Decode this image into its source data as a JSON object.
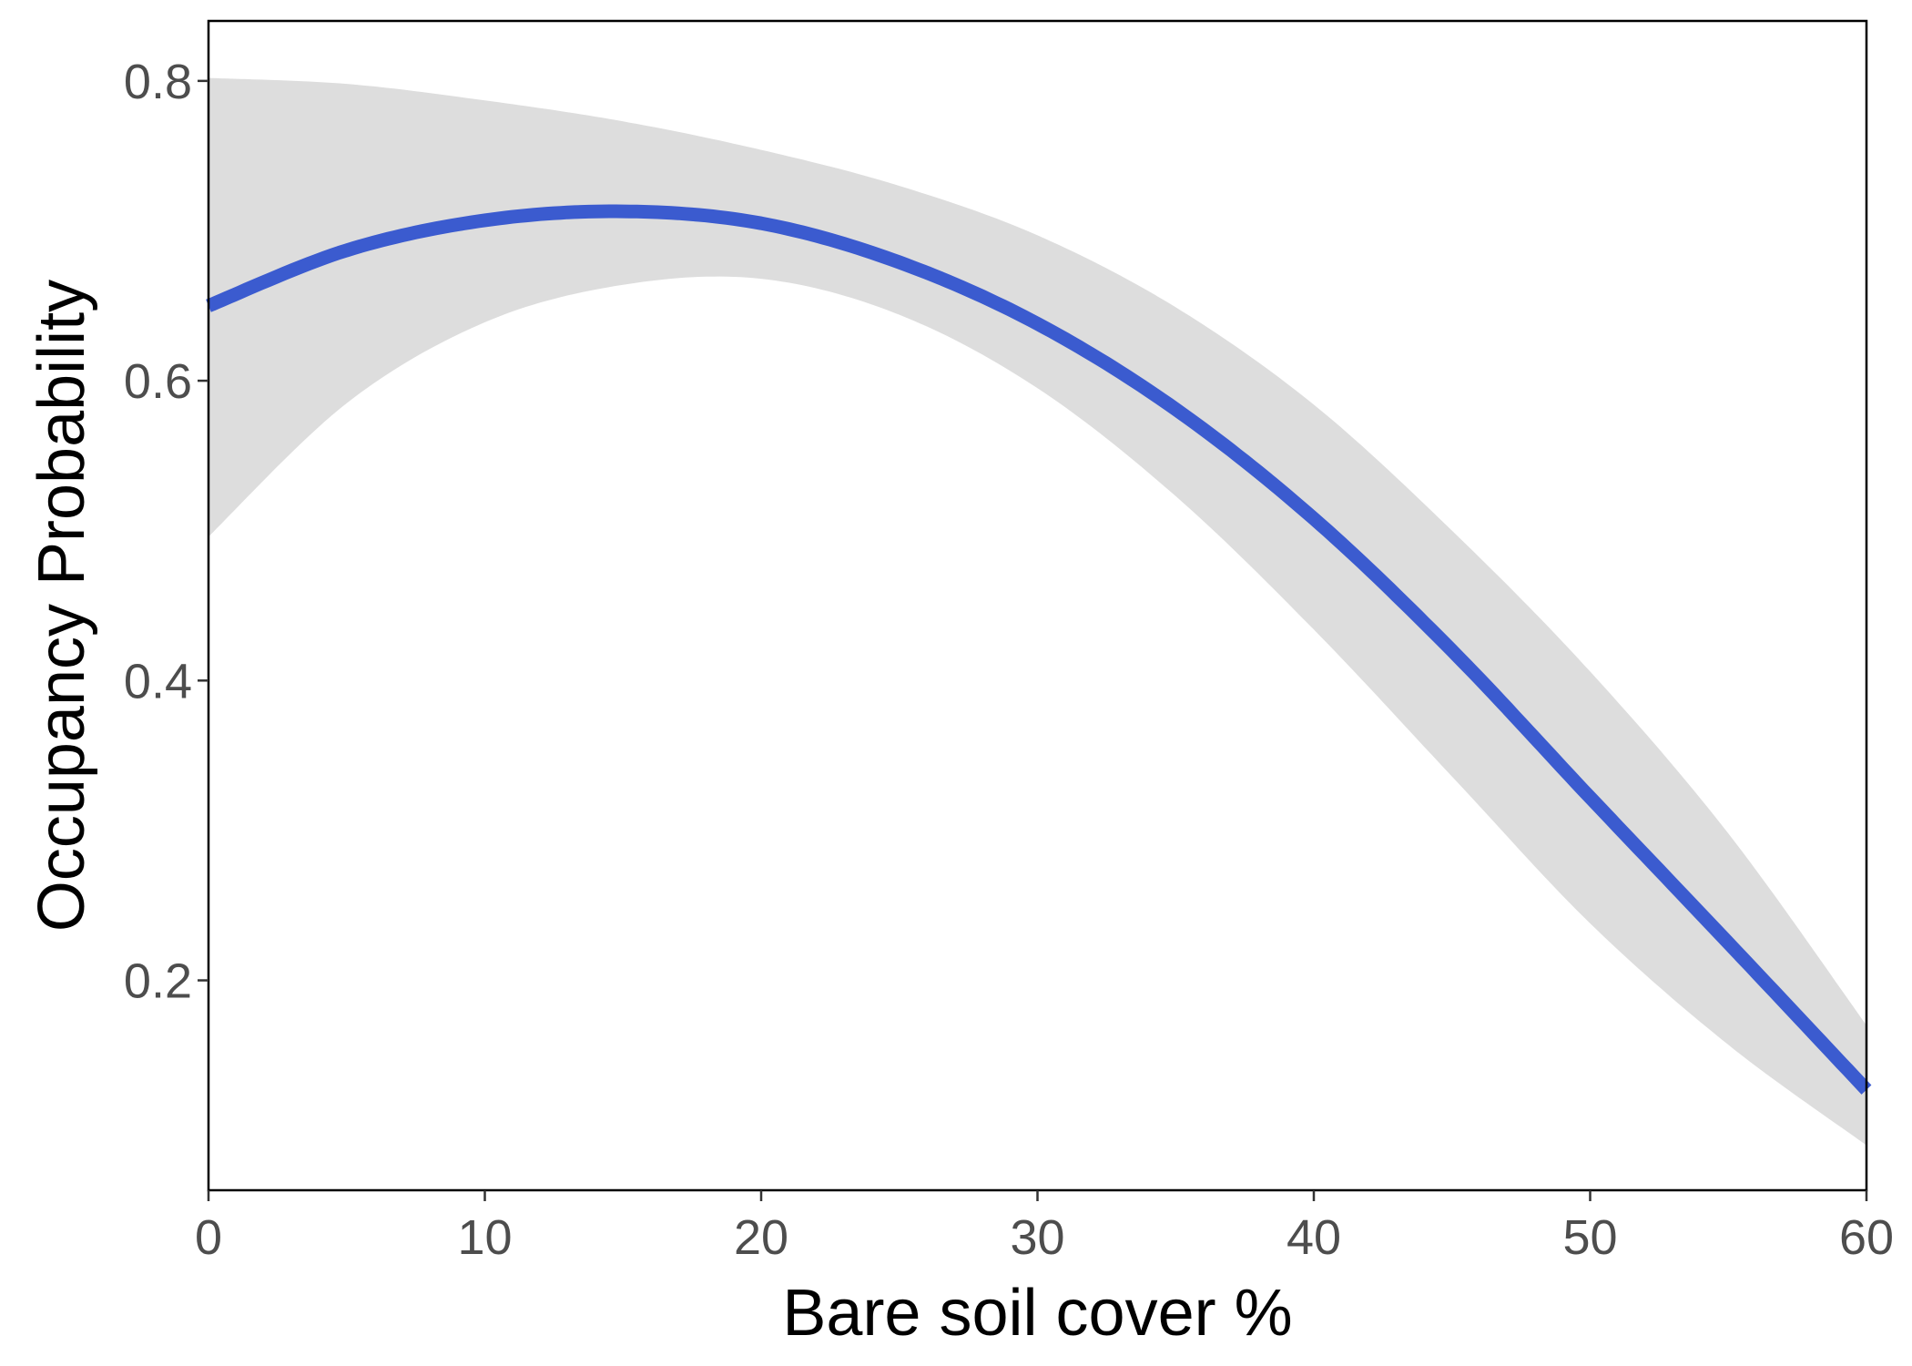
{
  "chart_data": {
    "type": "line",
    "title": "",
    "xlabel": "Bare soil cover %",
    "ylabel": "Occupancy Probability",
    "xlim": [
      0,
      60
    ],
    "ylim": [
      0.06,
      0.84
    ],
    "x_ticks": [
      0,
      10,
      20,
      30,
      40,
      50,
      60
    ],
    "x_tick_labels": [
      "0",
      "10",
      "20",
      "30",
      "40",
      "50",
      "60"
    ],
    "y_ticks": [
      0.2,
      0.4,
      0.6,
      0.8
    ],
    "y_tick_labels": [
      "0.2",
      "0.4",
      "0.6",
      "0.8"
    ],
    "grid": false,
    "legend": "none",
    "colors": {
      "line": "#3b5bcf",
      "band": "#dddddd",
      "frame": "#000000",
      "tick_text": "#4d4d4d"
    },
    "x": [
      0,
      5,
      10,
      15,
      20,
      25,
      30,
      35,
      40,
      45,
      50,
      55,
      60
    ],
    "series": [
      {
        "role": "fit",
        "values": [
          0.65,
          0.687,
          0.707,
          0.713,
          0.705,
          0.679,
          0.638,
          0.581,
          0.508,
          0.42,
          0.322,
          0.225,
          0.127
        ]
      },
      {
        "role": "ci_upper",
        "values": [
          0.802,
          0.798,
          0.787,
          0.773,
          0.754,
          0.73,
          0.697,
          0.649,
          0.584,
          0.5,
          0.406,
          0.298,
          0.17
        ]
      },
      {
        "role": "ci_lower",
        "values": [
          0.496,
          0.585,
          0.639,
          0.664,
          0.668,
          0.644,
          0.595,
          0.523,
          0.434,
          0.336,
          0.238,
          0.157,
          0.09
        ]
      }
    ]
  }
}
